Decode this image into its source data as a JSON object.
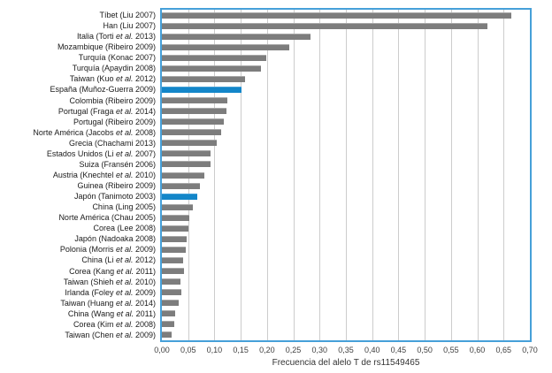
{
  "chart_data": {
    "type": "bar",
    "orientation": "horizontal",
    "title": "",
    "xlabel": "Frecuencia del alelo T de rs11549465",
    "xlim": [
      0,
      0.7
    ],
    "x_tick_step": 0.05,
    "x_ticks": [
      "0,00",
      "0,05",
      "0,10",
      "0,15",
      "0,20",
      "0,25",
      "0,30",
      "0,35",
      "0,40",
      "0,45",
      "0,50",
      "0,55",
      "0,60",
      "0,65",
      "0,70"
    ],
    "grid": true,
    "legend": false,
    "categories": [
      "Tíbet (Liu 2007)",
      "Han (Liu 2007)",
      "Italia (Torti et al. 2013)",
      "Mozambique (Ribeiro 2009)",
      "Turquía (Konac 2007)",
      "Turquía (Apaydin 2008)",
      "Taiwan (Kuo et al. 2012)",
      "España (Muñoz-Guerra 2009)",
      "Colombia (Ribeiro 2009)",
      "Portugal (Fraga et al. 2014)",
      "Portugal (Ribeiro 2009)",
      "Norte América (Jacobs et al. 2008)",
      "Grecia (Chachami 2013)",
      "Estados Unidos (Li et al. 2007)",
      "Suiza (Fransén 2006)",
      "Austria (Knechtel et al. 2010)",
      "Guinea (Ribeiro 2009)",
      "Japón (Tanimoto 2003)",
      "China (Ling 2005)",
      "Norte América (Chau 2005)",
      "Corea (Lee 2008)",
      "Japón (Nadoaka 2008)",
      "Polonia (Morris et al. 2009)",
      "China (Li et al. 2012)",
      "Corea (Kang et al. 2011)",
      "Taiwan (Shieh et al. 2010)",
      "Irlanda (Foley et al. 2009)",
      "Taiwan (Huang et al. 2014)",
      "China (Wang et al. 2011)",
      "Corea (Kim et al. 2008)",
      "Taiwan (Chen et al. 2009)"
    ],
    "values": [
      0.665,
      0.62,
      0.283,
      0.243,
      0.198,
      0.188,
      0.158,
      0.152,
      0.125,
      0.122,
      0.118,
      0.113,
      0.105,
      0.093,
      0.092,
      0.081,
      0.073,
      0.068,
      0.059,
      0.053,
      0.05,
      0.047,
      0.045,
      0.04,
      0.042,
      0.035,
      0.037,
      0.032,
      0.025,
      0.024,
      0.019
    ],
    "highlighted_indices": [
      7,
      17
    ],
    "colors": {
      "bar": "#7d7d7d",
      "bar_top_edge": "#a8a8a8",
      "highlight": "#1386c9",
      "highlight_top_edge": "#45a0d6",
      "plot_border": "#46a0d9",
      "gridline": "#cccccc",
      "label_text": "#1a1a1a",
      "tick_text": "#404040"
    }
  }
}
